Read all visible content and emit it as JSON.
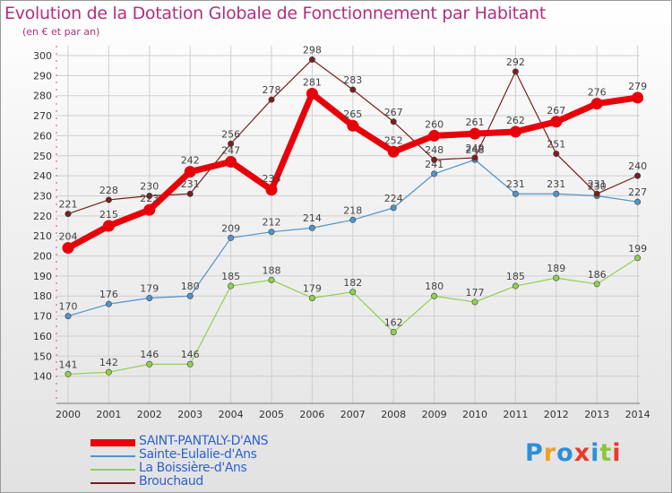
{
  "title": "Evolution de la Dotation Globale de Fonctionnement par Habitant",
  "subtitle": "(en € et par an)",
  "logo": {
    "text": "Proxiti",
    "colors": [
      "#2e8fd8",
      "#f0a020",
      "#2e8fd8",
      "#e83a2a",
      "#2e8fd8",
      "#8cc63e",
      "#e83a2a"
    ]
  },
  "colors": {
    "title": "#b0307a",
    "axis_text": "#333333",
    "grid": "#cfcfcf"
  },
  "chart_data": {
    "type": "line",
    "title": "Evolution de la Dotation Globale de Fonctionnement par Habitant",
    "subtitle": "(en € et par an)",
    "x": [
      "2000",
      "2001",
      "2002",
      "2003",
      "2004",
      "2005",
      "2006",
      "2007",
      "2008",
      "2009",
      "2010",
      "2011",
      "2012",
      "2013",
      "2014"
    ],
    "ylim": [
      130,
      300
    ],
    "yticks": [
      140,
      150,
      160,
      170,
      180,
      190,
      200,
      210,
      220,
      230,
      240,
      250,
      260,
      270,
      280,
      290,
      300
    ],
    "grid": true,
    "legend_position": "bottom-left",
    "series": [
      {
        "name": "SAINT-PANTALY-D'ANS",
        "color": "#e8000a",
        "values": [
          204,
          215,
          223,
          242,
          247,
          233,
          281,
          265,
          252,
          260,
          261,
          262,
          267,
          276,
          279
        ]
      },
      {
        "name": "Sainte-Eulalie-d'Ans",
        "color": "#4f93cc",
        "values": [
          170,
          176,
          179,
          180,
          209,
          212,
          214,
          218,
          224,
          241,
          248,
          231,
          231,
          230,
          227
        ]
      },
      {
        "name": "La Boissière-d'Ans",
        "color": "#8fd050",
        "values": [
          141,
          142,
          146,
          146,
          185,
          188,
          179,
          182,
          162,
          180,
          177,
          185,
          189,
          186,
          199
        ]
      },
      {
        "name": "Brouchaud",
        "color": "#7a1e1e",
        "values": [
          221,
          228,
          230,
          231,
          256,
          278,
          298,
          283,
          267,
          248,
          249,
          292,
          251,
          231,
          240
        ]
      }
    ]
  }
}
